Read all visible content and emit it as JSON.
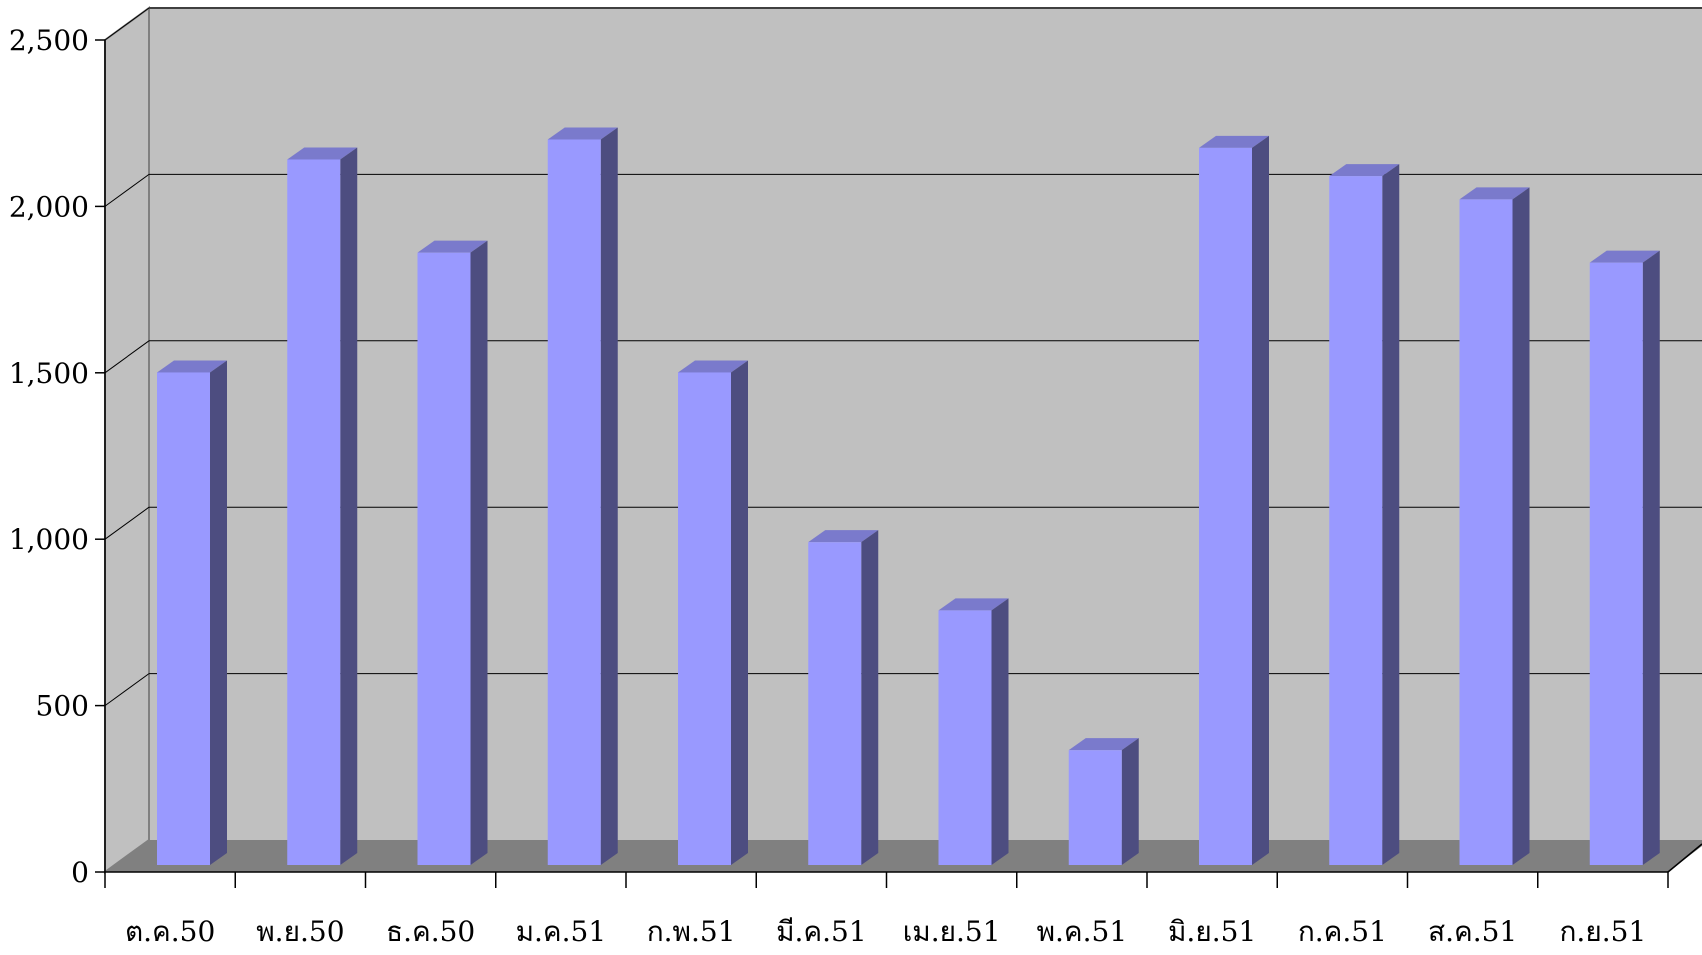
{
  "chart_data": {
    "type": "bar",
    "categories": [
      "ต.ค.50",
      "พ.ย.50",
      "ธ.ค.50",
      "ม.ค.51",
      "ก.พ.51",
      "มี.ค.51",
      "เม.ย.51",
      "พ.ค.51",
      "มิ.ย.51",
      "ก.ค.51",
      "ส.ค.51",
      "ก.ย.51"
    ],
    "values": [
      1480,
      2120,
      1840,
      2180,
      1480,
      970,
      765,
      345,
      2155,
      2070,
      2000,
      1810
    ],
    "y_ticks": [
      "0",
      "500",
      "1,000",
      "1,500",
      "2,000",
      "2,500"
    ],
    "ylim": [
      0,
      2500
    ],
    "grid": true,
    "legend": "none",
    "three_d": true,
    "colors": {
      "bar_front": "#9999ff",
      "bar_side": "#4d4d80",
      "bar_top": "#7a7acc",
      "wall": "#c0c0c0",
      "floor": "#808080",
      "gridline": "#000000"
    }
  }
}
